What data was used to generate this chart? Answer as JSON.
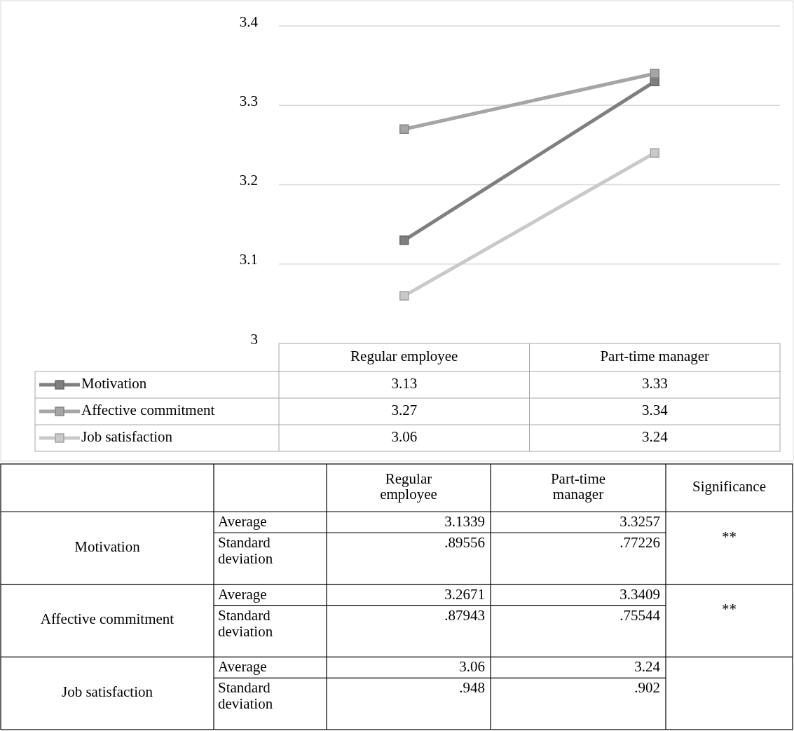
{
  "chart_data": [
    {
      "type": "line",
      "categories": [
        "Regular employee",
        "Part-time manager"
      ],
      "series": [
        {
          "name": "Motivation",
          "color": "#7f7f7f",
          "values": [
            3.13,
            3.33
          ]
        },
        {
          "name": "Affective commitment",
          "color": "#a5a5a5",
          "values": [
            3.27,
            3.34
          ]
        },
        {
          "name": "Job satisfaction",
          "color": "#c9c9c9",
          "values": [
            3.06,
            3.24
          ]
        }
      ],
      "ylim": [
        3,
        3.4
      ],
      "yticks": [
        3,
        3.1,
        3.2,
        3.3,
        3.4
      ],
      "grid": "y",
      "marker": "square",
      "data_labels": true,
      "legend": "bottom"
    },
    {
      "type": "other",
      "categories": [
        null,
        null,
        "Regular employee",
        "Part-time manager",
        "Significance"
      ],
      "y_categories": [
        "Motivation",
        "Affective commitment",
        "Job satisfaction"
      ],
      "y2_categories": [
        "Average",
        "Standard deviation",
        "Average",
        "Standard deviation",
        "Average",
        "Standard deviation"
      ],
      "cell_labels": [
        [
          "3.1339",
          "3.3257",
          "**"
        ],
        [
          ".89556",
          ".77226",
          null
        ],
        [
          "3.2671",
          "3.3409",
          "**"
        ],
        [
          ".87943",
          ".75544",
          null
        ],
        [
          "3.06",
          "3.24",
          null
        ],
        [
          ".948",
          ".902",
          null
        ]
      ]
    }
  ]
}
